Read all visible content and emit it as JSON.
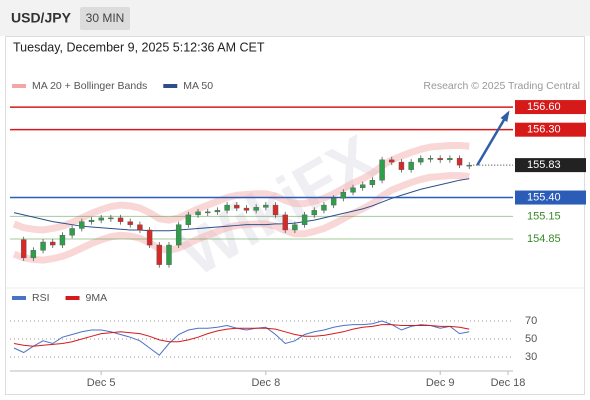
{
  "header": {
    "symbol": "USD/JPY",
    "timeframe": "30 MIN",
    "timestamp": "Tuesday, December 9, 2025 5:12:36 AM CET",
    "source": "Research © 2025 Trading Central",
    "watermark": "WikiFX"
  },
  "chart_data": [
    {
      "type": "candlestick",
      "categories": [
        null,
        null,
        null,
        null,
        null,
        null,
        null,
        null,
        null,
        "Dec 5",
        null,
        null,
        null,
        null,
        null,
        null,
        null,
        null,
        null,
        null,
        null,
        null,
        null,
        null,
        null,
        null,
        "Dec 8",
        null,
        null,
        null,
        null,
        null,
        null,
        null,
        null,
        null,
        null,
        null,
        null,
        null,
        null,
        null,
        null,
        null,
        "Dec 9",
        null,
        null,
        null,
        null,
        null,
        null,
        "Dec 18"
      ],
      "close": [
        154.84,
        154.6,
        154.7,
        154.81,
        154.77,
        154.9,
        154.99,
        155.08,
        155.1,
        155.13,
        155.13,
        155.08,
        155.04,
        154.97,
        154.77,
        154.51,
        154.77,
        155.04,
        155.17,
        155.21,
        155.21,
        155.23,
        155.3,
        155.26,
        155.23,
        155.27,
        155.3,
        155.17,
        154.97,
        155.04,
        155.17,
        155.23,
        155.3,
        155.39,
        155.47,
        155.53,
        155.57,
        155.63,
        155.9,
        155.87,
        155.77,
        155.87,
        155.92,
        155.92,
        155.9,
        155.92,
        155.83,
        155.83,
        null,
        null,
        null,
        null
      ],
      "up_color": "#2e9e4a",
      "down_color": "#d62a2a",
      "series": [
        {
          "name": "MA 20 + Bollinger Bands",
          "color": "#f4a6a6",
          "upper": [
            155.05,
            155.0,
            154.98,
            154.97,
            154.99,
            155.02,
            155.07,
            155.13,
            155.19,
            155.24,
            155.28,
            155.3,
            155.29,
            155.26,
            155.2,
            155.12,
            155.1,
            155.13,
            155.19,
            155.25,
            155.3,
            155.35,
            155.4,
            155.43,
            155.44,
            155.45,
            155.45,
            155.42,
            155.36,
            155.32,
            155.32,
            155.35,
            155.39,
            155.45,
            155.52,
            155.59,
            155.65,
            155.72,
            155.82,
            155.9,
            155.95,
            156.0,
            156.04,
            156.07,
            156.08,
            156.09,
            156.09,
            156.08,
            null,
            null,
            null,
            null
          ],
          "lower": [
            154.65,
            154.6,
            154.58,
            154.57,
            154.59,
            154.62,
            154.67,
            154.73,
            154.79,
            154.84,
            154.88,
            154.9,
            154.89,
            154.86,
            154.8,
            154.72,
            154.7,
            154.73,
            154.79,
            154.85,
            154.9,
            154.95,
            155.0,
            155.03,
            155.04,
            155.05,
            155.05,
            155.02,
            154.96,
            154.92,
            154.92,
            154.95,
            154.99,
            155.05,
            155.12,
            155.19,
            155.25,
            155.32,
            155.42,
            155.5,
            155.55,
            155.6,
            155.64,
            155.67,
            155.68,
            155.69,
            155.69,
            155.68,
            null,
            null,
            null,
            null
          ]
        },
        {
          "name": "MA 50",
          "color": "#2c4f8c",
          "values": [
            155.2,
            155.17,
            155.14,
            155.11,
            155.08,
            155.06,
            155.04,
            155.02,
            155.01,
            155.0,
            154.99,
            154.98,
            154.97,
            154.97,
            154.96,
            154.96,
            154.96,
            154.97,
            154.98,
            154.99,
            155.0,
            155.01,
            155.02,
            155.03,
            155.04,
            155.04,
            155.04,
            155.05,
            155.05,
            155.06,
            155.08,
            155.1,
            155.13,
            155.16,
            155.19,
            155.22,
            155.25,
            155.29,
            155.34,
            155.39,
            155.43,
            155.47,
            155.51,
            155.54,
            155.57,
            155.6,
            155.63,
            155.65,
            null,
            null,
            null,
            null
          ]
        }
      ],
      "levels": [
        {
          "value": 156.6,
          "label": "156.60",
          "color": "#d61a1a",
          "style": "box"
        },
        {
          "value": 156.3,
          "label": "156.30",
          "color": "#d61a1a",
          "style": "box"
        },
        {
          "value": 155.83,
          "label": "155.83",
          "color": "#222222",
          "style": "current"
        },
        {
          "value": 155.4,
          "label": "155.40",
          "color": "#2a5cb8",
          "style": "box"
        },
        {
          "value": 155.15,
          "label": "155.15",
          "color": "#3a8a2a",
          "style": "text"
        },
        {
          "value": 154.85,
          "label": "154.85",
          "color": "#3a8a2a",
          "style": "text"
        }
      ],
      "ylim": [
        154.24,
        156.76
      ]
    },
    {
      "type": "line",
      "series": [
        {
          "name": "RSI",
          "color": "#4a72c8",
          "values": [
            40,
            35,
            42,
            48,
            45,
            52,
            55,
            58,
            60,
            60,
            58,
            55,
            52,
            48,
            40,
            32,
            45,
            55,
            60,
            62,
            62,
            63,
            65,
            62,
            60,
            62,
            63,
            55,
            45,
            48,
            55,
            58,
            60,
            63,
            65,
            66,
            66,
            67,
            70,
            66,
            60,
            64,
            66,
            65,
            62,
            64,
            56,
            58,
            null,
            null,
            null,
            null
          ]
        },
        {
          "name": "9MA",
          "color": "#d61a1a",
          "values": [
            45,
            43,
            42,
            43,
            44,
            45,
            47,
            50,
            53,
            56,
            57,
            58,
            57,
            56,
            53,
            49,
            47,
            47,
            49,
            52,
            56,
            59,
            61,
            62,
            62,
            62,
            62,
            61,
            58,
            55,
            53,
            53,
            54,
            56,
            58,
            61,
            63,
            64,
            66,
            66,
            65,
            65,
            65,
            65,
            64,
            64,
            63,
            61,
            null,
            null,
            null,
            null
          ]
        }
      ],
      "ylim": [
        20,
        80
      ],
      "yticks": [
        30,
        50,
        70
      ],
      "grid": true
    }
  ]
}
